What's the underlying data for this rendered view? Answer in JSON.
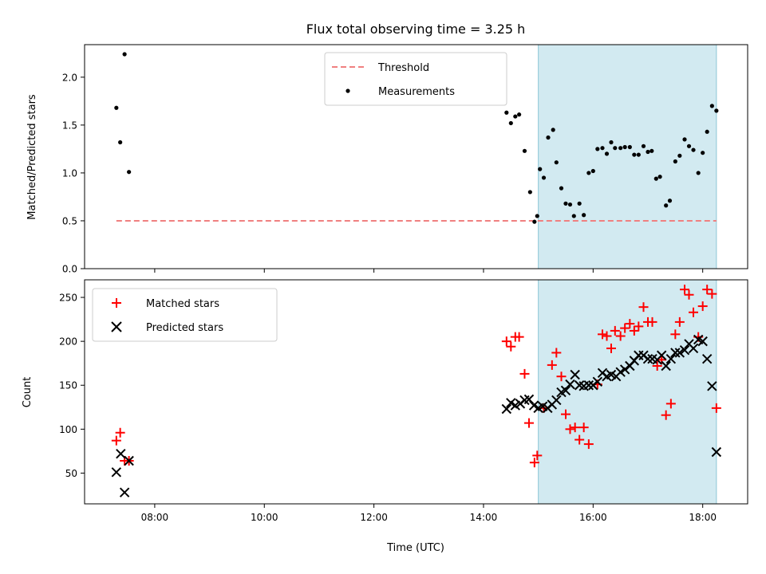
{
  "chart_data": {
    "title": "Flux total observing time = 3.25 h",
    "xlabel": "Time (UTC)",
    "x_unit": "hours (UTC)",
    "xlim": [
      6.72,
      18.82
    ],
    "x_ticks": [
      {
        "value": 8,
        "label": "08:00"
      },
      {
        "value": 10,
        "label": "10:00"
      },
      {
        "value": 12,
        "label": "12:00"
      },
      {
        "value": 14,
        "label": "14:00"
      },
      {
        "value": 16,
        "label": "16:00"
      },
      {
        "value": 18,
        "label": "18:00"
      }
    ],
    "shaded_span": {
      "x_start": 15.0,
      "x_end": 18.25,
      "color": "#add8e6"
    },
    "colors": {
      "threshold": "#f08080",
      "measurements": "#000000",
      "matched": "#ff0000",
      "predicted": "#000000",
      "span": "#add8e6"
    },
    "panels": [
      {
        "name": "ratio",
        "type": "scatter",
        "ylabel": "Matched/Predicted stars",
        "ylim": [
          0,
          2.34
        ],
        "y_ticks": [
          0.0,
          0.5,
          1.0,
          1.5,
          2.0
        ],
        "y_tick_labels": [
          "0.0",
          "0.5",
          "1.0",
          "1.5",
          "2.0"
        ],
        "legend": {
          "position": "upper center",
          "entries": [
            "Threshold",
            "Measurements"
          ]
        },
        "threshold": {
          "name": "Threshold",
          "y": 0.5,
          "x_start": 7.3,
          "x_end": 18.25
        },
        "series": [
          {
            "name": "Measurements",
            "marker": "dot",
            "x": [
              7.3,
              7.37,
              7.45,
              7.53,
              14.42,
              14.5,
              14.58,
              14.65,
              14.75,
              14.85,
              14.93,
              14.98,
              15.03,
              15.1,
              15.18,
              15.27,
              15.33,
              15.42,
              15.5,
              15.58,
              15.65,
              15.75,
              15.83,
              15.92,
              16.0,
              16.08,
              16.17,
              16.25,
              16.33,
              16.4,
              16.5,
              16.58,
              16.67,
              16.75,
              16.83,
              16.92,
              17.0,
              17.07,
              17.15,
              17.22,
              17.33,
              17.4,
              17.5,
              17.58,
              17.67,
              17.75,
              17.83,
              17.92,
              18.0,
              18.08,
              18.17,
              18.25
            ],
            "y": [
              1.68,
              1.32,
              2.24,
              1.01,
              1.63,
              1.52,
              1.59,
              1.61,
              1.23,
              0.8,
              0.49,
              0.55,
              1.04,
              0.95,
              1.37,
              1.45,
              1.11,
              0.84,
              0.68,
              0.67,
              0.55,
              0.68,
              0.56,
              1.0,
              1.02,
              1.25,
              1.26,
              1.2,
              1.32,
              1.26,
              1.26,
              1.27,
              1.27,
              1.19,
              1.19,
              1.28,
              1.22,
              1.23,
              0.94,
              0.96,
              0.66,
              0.71,
              1.12,
              1.18,
              1.35,
              1.28,
              1.24,
              1.0,
              1.21,
              1.43,
              1.7,
              1.65
            ]
          }
        ]
      },
      {
        "name": "counts",
        "type": "scatter",
        "ylabel": "Count",
        "ylim": [
          15,
          270
        ],
        "y_ticks": [
          50,
          100,
          150,
          200,
          250
        ],
        "y_tick_labels": [
          "50",
          "100",
          "150",
          "200",
          "250"
        ],
        "legend": {
          "position": "upper left",
          "entries": [
            "Matched stars",
            "Predicted stars"
          ]
        },
        "series": [
          {
            "name": "Matched stars",
            "marker": "plus",
            "x": [
              7.3,
              7.37,
              7.45,
              7.53,
              14.42,
              14.5,
              14.58,
              14.65,
              14.75,
              14.83,
              14.93,
              14.98,
              15.1,
              15.25,
              15.33,
              15.42,
              15.5,
              15.58,
              15.67,
              15.75,
              15.83,
              15.92,
              16.08,
              16.17,
              16.25,
              16.33,
              16.4,
              16.5,
              16.58,
              16.67,
              16.75,
              16.83,
              16.92,
              17.0,
              17.08,
              17.17,
              17.25,
              17.33,
              17.42,
              17.5,
              17.58,
              17.67,
              17.75,
              17.83,
              17.92,
              18.0,
              18.08,
              18.17,
              18.25
            ],
            "y": [
              87,
              96,
              64,
              64,
              200,
              194,
              205,
              205,
              163,
              107,
              62,
              70,
              124,
              173,
              187,
              160,
              117,
              100,
              102,
              88,
              102,
              83,
              151,
              208,
              206,
              192,
              212,
              206,
              215,
              220,
              212,
              217,
              239,
              222,
              222,
              172,
              179,
              116,
              129,
              208,
              222,
              259,
              253,
              233,
              205,
              240,
              259,
              254,
              124
            ]
          },
          {
            "name": "Predicted stars",
            "marker": "x",
            "x": [
              7.3,
              7.38,
              7.45,
              7.53,
              14.42,
              14.5,
              14.58,
              14.67,
              14.75,
              14.83,
              14.92,
              15.0,
              15.08,
              15.17,
              15.25,
              15.33,
              15.42,
              15.5,
              15.58,
              15.67,
              15.75,
              15.83,
              15.92,
              16.0,
              16.08,
              16.17,
              16.25,
              16.33,
              16.42,
              16.5,
              16.58,
              16.67,
              16.75,
              16.83,
              16.92,
              17.0,
              17.08,
              17.17,
              17.25,
              17.33,
              17.42,
              17.5,
              17.58,
              17.67,
              17.75,
              17.83,
              17.92,
              18.0,
              18.08,
              18.17,
              18.25
            ],
            "y": [
              51,
              72,
              28,
              64,
              123,
              130,
              127,
              129,
              133,
              134,
              127,
              124,
              126,
              124,
              128,
              133,
              142,
              144,
              151,
              162,
              150,
              149,
              150,
              150,
              154,
              164,
              160,
              162,
              160,
              165,
              168,
              172,
              178,
              184,
              184,
              180,
              180,
              179,
              184,
              172,
              180,
              187,
              187,
              190,
              197,
              192,
              202,
              200,
              180,
              149,
              74
            ]
          }
        ]
      }
    ]
  }
}
